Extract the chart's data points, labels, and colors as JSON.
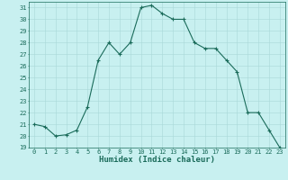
{
  "x": [
    0,
    1,
    2,
    3,
    4,
    5,
    6,
    7,
    8,
    9,
    10,
    11,
    12,
    13,
    14,
    15,
    16,
    17,
    18,
    19,
    20,
    21,
    22,
    23
  ],
  "y": [
    21.0,
    20.8,
    20.0,
    20.1,
    20.5,
    22.5,
    26.5,
    28.0,
    27.0,
    28.0,
    31.0,
    31.2,
    30.5,
    30.0,
    30.0,
    28.0,
    27.5,
    27.5,
    26.5,
    25.5,
    22.0,
    22.0,
    20.5,
    19.0
  ],
  "xlim": [
    -0.5,
    23.5
  ],
  "ylim": [
    19,
    31.5
  ],
  "yticks": [
    19,
    20,
    21,
    22,
    23,
    24,
    25,
    26,
    27,
    28,
    29,
    30,
    31
  ],
  "xticks": [
    0,
    1,
    2,
    3,
    4,
    5,
    6,
    7,
    8,
    9,
    10,
    11,
    12,
    13,
    14,
    15,
    16,
    17,
    18,
    19,
    20,
    21,
    22,
    23
  ],
  "xlabel": "Humidex (Indice chaleur)",
  "line_color": "#1a6b5a",
  "marker": "+",
  "marker_size": 3,
  "bg_color": "#c8f0f0",
  "grid_color": "#a8d8d8",
  "tick_fontsize": 5,
  "xlabel_fontsize": 6.5,
  "linewidth": 0.8
}
